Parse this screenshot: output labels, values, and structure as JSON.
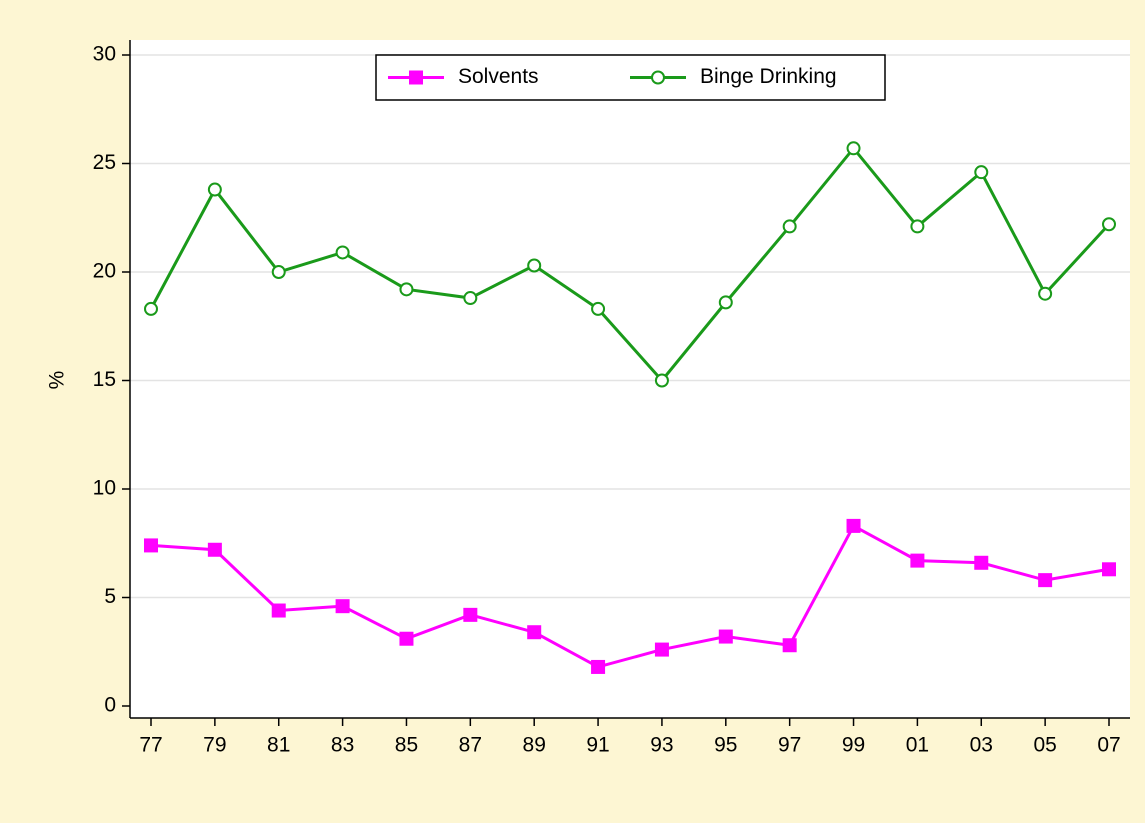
{
  "chart_data": {
    "type": "line",
    "y_label": "%",
    "categories": [
      "77",
      "79",
      "81",
      "83",
      "85",
      "87",
      "89",
      "91",
      "93",
      "95",
      "97",
      "99",
      "01",
      "03",
      "05",
      "07"
    ],
    "series": [
      {
        "name": "Solvents",
        "color": "#ff00ff",
        "marker": "square",
        "values": [
          7.4,
          7.2,
          4.4,
          4.6,
          3.1,
          4.2,
          3.4,
          1.8,
          2.6,
          3.2,
          2.8,
          8.3,
          6.7,
          6.6,
          5.8,
          6.3
        ]
      },
      {
        "name": "Binge Drinking",
        "color": "#1a9a1a",
        "marker": "hollow-circle",
        "values": [
          18.3,
          23.8,
          20.0,
          20.9,
          19.2,
          18.8,
          20.3,
          18.3,
          15.0,
          18.6,
          22.1,
          25.7,
          22.1,
          24.6,
          19.0,
          22.2
        ]
      }
    ],
    "ylim": [
      0,
      30
    ],
    "yticks": [
      0,
      5,
      10,
      15,
      20,
      25,
      30
    ],
    "grid": true,
    "legend": "top"
  }
}
